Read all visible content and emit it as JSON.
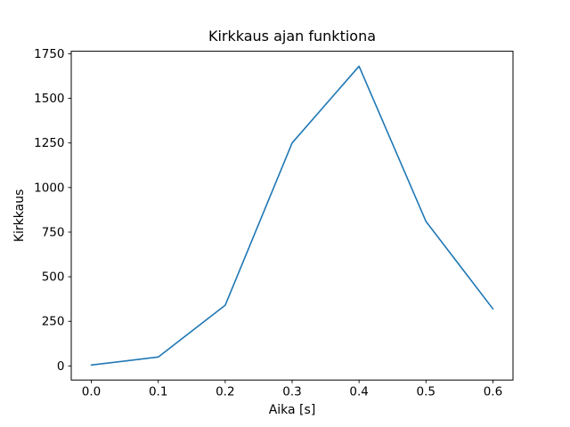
{
  "chart_data": {
    "type": "line",
    "title": "Kirkkaus ajan funktiona",
    "xlabel": "Aika [s]",
    "ylabel": "Kirkkaus",
    "x": [
      0.0,
      0.1,
      0.2,
      0.3,
      0.4,
      0.5,
      0.6
    ],
    "y": [
      5,
      50,
      340,
      1250,
      1680,
      810,
      320
    ],
    "xtick_values": [
      0.0,
      0.1,
      0.2,
      0.3,
      0.4,
      0.5,
      0.6
    ],
    "xtick_labels": [
      "0.0",
      "0.1",
      "0.2",
      "0.3",
      "0.4",
      "0.5",
      "0.6"
    ],
    "ytick_values": [
      0,
      250,
      500,
      750,
      1000,
      1250,
      1500,
      1750
    ],
    "ytick_labels": [
      "0",
      "250",
      "500",
      "750",
      "1000",
      "1250",
      "1500",
      "1750"
    ],
    "xlim": [
      -0.03,
      0.63
    ],
    "ylim": [
      -79,
      1764
    ],
    "grid": false,
    "legend": null,
    "line_color": "#1f77b4",
    "line_width": 1.6,
    "frame_color": "#000000",
    "background_color": "#ffffff"
  },
  "layout_labels": {
    "figure_name": "brightness-vs-time-chart"
  }
}
